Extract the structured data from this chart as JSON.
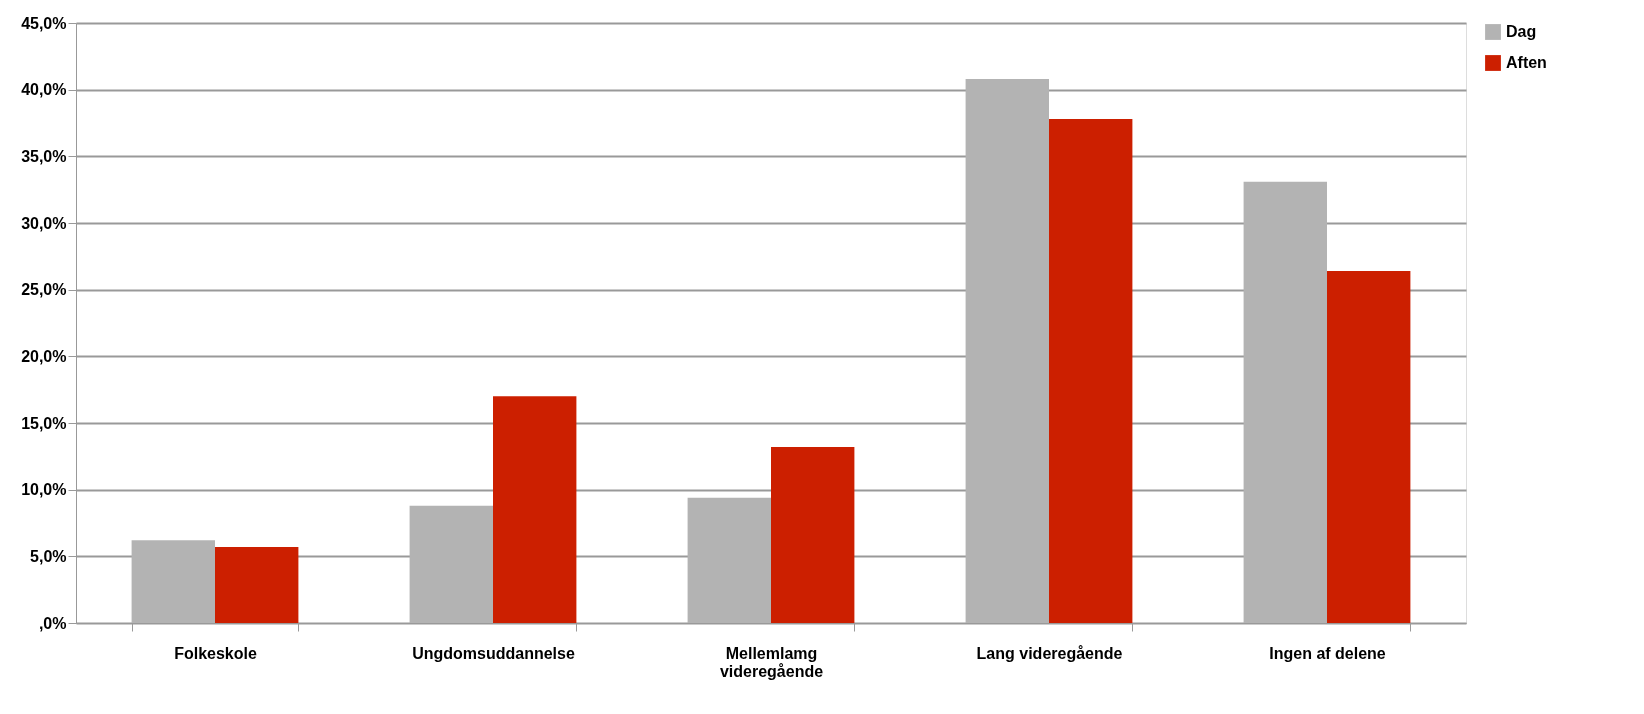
{
  "chart_data": {
    "type": "bar",
    "categories": [
      "Folkeskole",
      "Ungdomsuddannelse",
      "Mellemlamg videregående",
      "Lang videregående",
      "Ingen af delene"
    ],
    "series": [
      {
        "name": "Dag",
        "color": "#b3b3b3",
        "values": [
          6.2,
          8.8,
          9.4,
          40.8,
          33.1
        ]
      },
      {
        "name": "Aften",
        "color": "#cc1f00",
        "values": [
          5.7,
          17.0,
          13.2,
          37.8,
          26.4
        ]
      }
    ],
    "ylim": [
      0,
      45
    ],
    "yticks": [
      {
        "value": 0,
        "label": ",0%"
      },
      {
        "value": 5,
        "label": "5,0%"
      },
      {
        "value": 10,
        "label": "10,0%"
      },
      {
        "value": 15,
        "label": "15,0%"
      },
      {
        "value": 20,
        "label": "20,0%"
      },
      {
        "value": 25,
        "label": "25,0%"
      },
      {
        "value": 30,
        "label": "30,0%"
      },
      {
        "value": 35,
        "label": "35,0%"
      },
      {
        "value": 40,
        "label": "40,0%"
      },
      {
        "value": 45,
        "label": "45,0%"
      }
    ],
    "grid": "y",
    "legend": "right"
  }
}
